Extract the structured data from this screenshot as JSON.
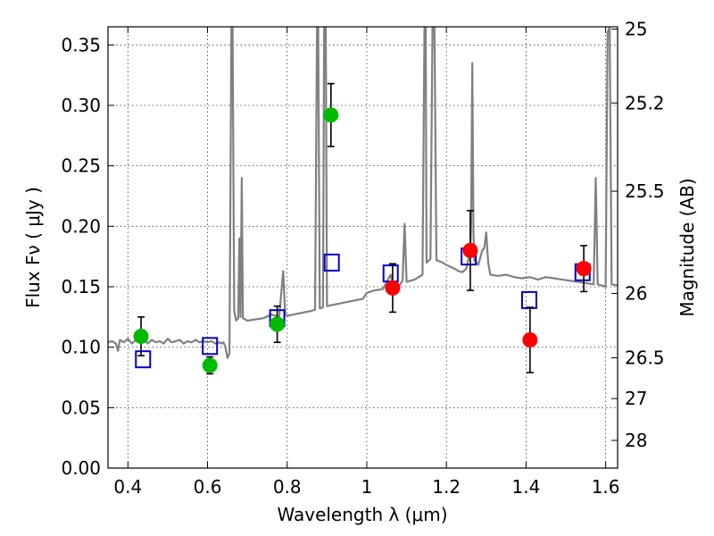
{
  "chart_data": {
    "type": "scatter",
    "xlabel": "Wavelength  λ (μm)",
    "ylabel": "Flux  Fν  ( μJy )",
    "ylabel_right": "Magnitude (AB)",
    "xlim": [
      0.35,
      1.63
    ],
    "ylim": [
      0.0,
      0.365
    ],
    "x_ticks": [
      0.4,
      0.6,
      0.8,
      1.0,
      1.2,
      1.4,
      1.6
    ],
    "x_tick_labels": [
      "0.4",
      "0.6",
      "0.8",
      "1",
      "1.2",
      "1.4",
      "1.6"
    ],
    "y_ticks": [
      0.0,
      0.05,
      0.1,
      0.15,
      0.2,
      0.25,
      0.3,
      0.35
    ],
    "y_tick_labels": [
      "0.00",
      "0.05",
      "0.10",
      "0.15",
      "0.20",
      "0.25",
      "0.30",
      "0.35"
    ],
    "mag_ticks": [
      {
        "label": "25",
        "flux": 0.3631
      },
      {
        "label": "25.2",
        "flux": 0.302
      },
      {
        "label": "25.5",
        "flux": 0.229
      },
      {
        "label": "26",
        "flux": 0.1445
      },
      {
        "label": "26.5",
        "flux": 0.0912
      },
      {
        "label": "27",
        "flux": 0.0575
      },
      {
        "label": "28",
        "flux": 0.0229
      }
    ],
    "grid": true,
    "colors": {
      "spectrum": "#808080",
      "green_points": "#00bb00",
      "red_points": "#ff0000",
      "model_squares": "#0000cc",
      "error_bars": "#000000"
    },
    "series": [
      {
        "type": "line",
        "color": "#808080",
        "points": [
          [
            0.35,
            0.104
          ],
          [
            0.36,
            0.105
          ],
          [
            0.37,
            0.103
          ],
          [
            0.375,
            0.097
          ],
          [
            0.38,
            0.106
          ],
          [
            0.39,
            0.104
          ],
          [
            0.4,
            0.107
          ],
          [
            0.41,
            0.103
          ],
          [
            0.42,
            0.106
          ],
          [
            0.43,
            0.104
          ],
          [
            0.44,
            0.108
          ],
          [
            0.45,
            0.103
          ],
          [
            0.46,
            0.106
          ],
          [
            0.47,
            0.104
          ],
          [
            0.48,
            0.105
          ],
          [
            0.49,
            0.103
          ],
          [
            0.5,
            0.107
          ],
          [
            0.51,
            0.104
          ],
          [
            0.52,
            0.105
          ],
          [
            0.53,
            0.106
          ],
          [
            0.54,
            0.103
          ],
          [
            0.55,
            0.105
          ],
          [
            0.56,
            0.104
          ],
          [
            0.57,
            0.106
          ],
          [
            0.58,
            0.104
          ],
          [
            0.59,
            0.105
          ],
          [
            0.6,
            0.104
          ],
          [
            0.61,
            0.105
          ],
          [
            0.62,
            0.103
          ],
          [
            0.63,
            0.104
          ],
          [
            0.635,
            0.103
          ],
          [
            0.64,
            0.104
          ],
          [
            0.645,
            0.1
          ],
          [
            0.65,
            0.091
          ],
          [
            0.655,
            0.095
          ],
          [
            0.66,
            0.365
          ],
          [
            0.663,
            0.365
          ],
          [
            0.667,
            0.13
          ],
          [
            0.672,
            0.122
          ],
          [
            0.677,
            0.124
          ],
          [
            0.68,
            0.19
          ],
          [
            0.683,
            0.125
          ],
          [
            0.686,
            0.24
          ],
          [
            0.689,
            0.124
          ],
          [
            0.7,
            0.122
          ],
          [
            0.72,
            0.123
          ],
          [
            0.74,
            0.124
          ],
          [
            0.76,
            0.127
          ],
          [
            0.78,
            0.125
          ],
          [
            0.79,
            0.163
          ],
          [
            0.795,
            0.127
          ],
          [
            0.8,
            0.126
          ],
          [
            0.83,
            0.128
          ],
          [
            0.86,
            0.13
          ],
          [
            0.87,
            0.131
          ],
          [
            0.875,
            0.365
          ],
          [
            0.878,
            0.365
          ],
          [
            0.882,
            0.132
          ],
          [
            0.89,
            0.133
          ],
          [
            0.893,
            0.365
          ],
          [
            0.897,
            0.365
          ],
          [
            0.9,
            0.134
          ],
          [
            0.93,
            0.136
          ],
          [
            0.96,
            0.138
          ],
          [
            0.99,
            0.14
          ],
          [
            1.0,
            0.145
          ],
          [
            1.02,
            0.147
          ],
          [
            1.04,
            0.148
          ],
          [
            1.06,
            0.16
          ],
          [
            1.065,
            0.152
          ],
          [
            1.08,
            0.15
          ],
          [
            1.09,
            0.155
          ],
          [
            1.095,
            0.202
          ],
          [
            1.1,
            0.154
          ],
          [
            1.12,
            0.156
          ],
          [
            1.14,
            0.16
          ],
          [
            1.145,
            0.365
          ],
          [
            1.148,
            0.365
          ],
          [
            1.15,
            0.17
          ],
          [
            1.16,
            0.173
          ],
          [
            1.165,
            0.365
          ],
          [
            1.17,
            0.365
          ],
          [
            1.175,
            0.172
          ],
          [
            1.19,
            0.17
          ],
          [
            1.2,
            0.168
          ],
          [
            1.22,
            0.165
          ],
          [
            1.23,
            0.163
          ],
          [
            1.24,
            0.162
          ],
          [
            1.25,
            0.165
          ],
          [
            1.26,
            0.18
          ],
          [
            1.262,
            0.2
          ],
          [
            1.265,
            0.335
          ],
          [
            1.268,
            0.195
          ],
          [
            1.27,
            0.172
          ],
          [
            1.28,
            0.168
          ],
          [
            1.29,
            0.18
          ],
          [
            1.295,
            0.182
          ],
          [
            1.3,
            0.195
          ],
          [
            1.305,
            0.17
          ],
          [
            1.31,
            0.16
          ],
          [
            1.33,
            0.159
          ],
          [
            1.35,
            0.16
          ],
          [
            1.37,
            0.158
          ],
          [
            1.39,
            0.157
          ],
          [
            1.41,
            0.158
          ],
          [
            1.43,
            0.156
          ],
          [
            1.45,
            0.158
          ],
          [
            1.47,
            0.157
          ],
          [
            1.49,
            0.156
          ],
          [
            1.51,
            0.155
          ],
          [
            1.53,
            0.154
          ],
          [
            1.55,
            0.153
          ],
          [
            1.57,
            0.152
          ],
          [
            1.575,
            0.24
          ],
          [
            1.58,
            0.152
          ],
          [
            1.59,
            0.151
          ],
          [
            1.6,
            0.15
          ],
          [
            1.605,
            0.36
          ],
          [
            1.61,
            0.365
          ],
          [
            1.615,
            0.152
          ],
          [
            1.63,
            0.151
          ]
        ]
      },
      {
        "type": "scatter",
        "marker": "circle",
        "color": "#00bb00",
        "points": [
          {
            "x": 0.433,
            "y": 0.109,
            "err": 0.016
          },
          {
            "x": 0.606,
            "y": 0.085,
            "err": 0.007
          },
          {
            "x": 0.775,
            "y": 0.119,
            "err": 0.015
          },
          {
            "x": 0.91,
            "y": 0.292,
            "err": 0.026
          }
        ]
      },
      {
        "type": "scatter",
        "marker": "circle",
        "color": "#ff0000",
        "points": [
          {
            "x": 1.065,
            "y": 0.149,
            "err": 0.02
          },
          {
            "x": 1.26,
            "y": 0.18,
            "err": 0.033
          },
          {
            "x": 1.41,
            "y": 0.106,
            "err": 0.027
          },
          {
            "x": 1.545,
            "y": 0.165,
            "err": 0.019
          }
        ]
      },
      {
        "type": "scatter",
        "marker": "square-open",
        "color": "#0000cc",
        "points": [
          {
            "x": 0.438,
            "y": 0.09
          },
          {
            "x": 0.606,
            "y": 0.101
          },
          {
            "x": 0.775,
            "y": 0.124
          },
          {
            "x": 0.912,
            "y": 0.17
          },
          {
            "x": 1.06,
            "y": 0.161
          },
          {
            "x": 1.256,
            "y": 0.175
          },
          {
            "x": 1.408,
            "y": 0.139
          },
          {
            "x": 1.542,
            "y": 0.162
          }
        ]
      }
    ]
  }
}
